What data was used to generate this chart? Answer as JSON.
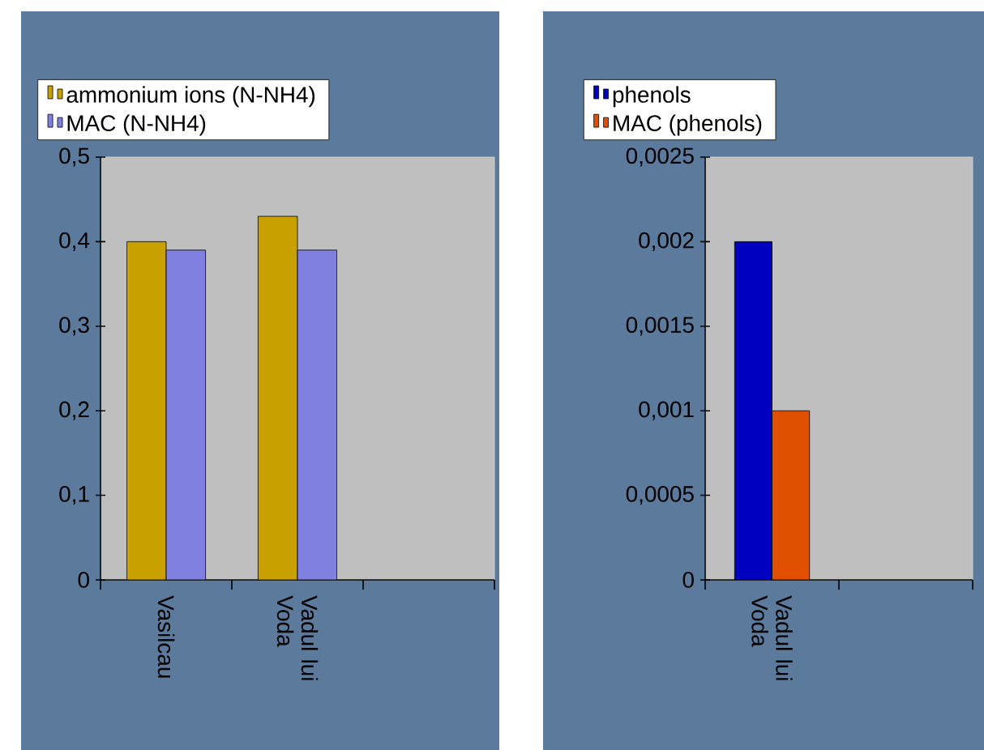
{
  "chart_data": [
    {
      "type": "bar",
      "categories": [
        "Vasilcau",
        "Vadul lui Voda",
        null
      ],
      "series": [
        {
          "name": "ammonium ions (N-NH4)",
          "color": "#c8a000",
          "values": [
            0.4,
            0.43,
            null
          ]
        },
        {
          "name": "MAC (N-NH4)",
          "color": "#8080e0",
          "values": [
            0.39,
            0.39,
            null
          ]
        }
      ],
      "ylim": [
        0,
        0.5
      ],
      "yticks": [
        {
          "value": 0,
          "label": "0"
        },
        {
          "value": 0.1,
          "label": "0,1"
        },
        {
          "value": 0.2,
          "label": "0,2"
        },
        {
          "value": 0.3,
          "label": "0,3"
        },
        {
          "value": 0.4,
          "label": "0,4"
        },
        {
          "value": 0.5,
          "label": "0,5"
        }
      ],
      "grid": false,
      "legend": "top"
    },
    {
      "type": "bar",
      "categories": [
        "Vadul lui Voda",
        null
      ],
      "series": [
        {
          "name": "phenols",
          "color": "#0000c0",
          "values": [
            0.002,
            null
          ]
        },
        {
          "name": "MAC (phenols)",
          "color": "#e05000",
          "values": [
            0.001,
            null
          ]
        }
      ],
      "ylim": [
        0,
        0.0025
      ],
      "yticks": [
        {
          "value": 0,
          "label": "0"
        },
        {
          "value": 0.0005,
          "label": "0,0005"
        },
        {
          "value": 0.001,
          "label": "0,001"
        },
        {
          "value": 0.0015,
          "label": "0,0015"
        },
        {
          "value": 0.002,
          "label": "0,002"
        },
        {
          "value": 0.0025,
          "label": "0,0025"
        }
      ],
      "grid": false,
      "legend": "top"
    }
  ]
}
